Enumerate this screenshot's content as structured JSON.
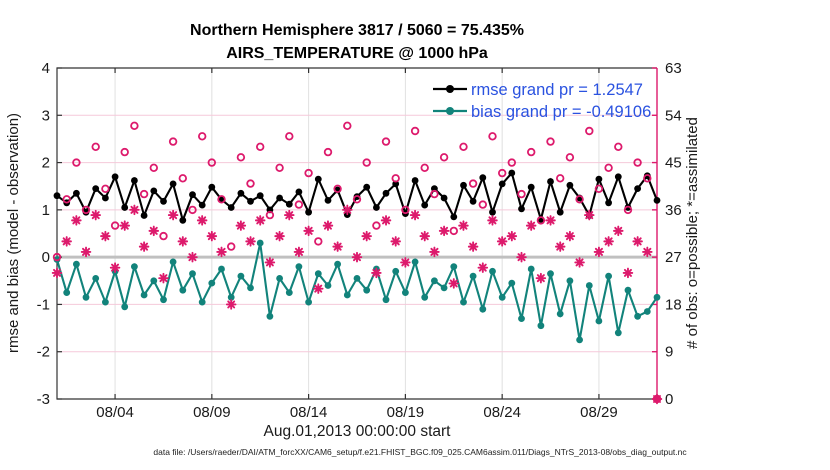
{
  "footer": {
    "text": "data file: /Users/raeder/DAI/ATM_forcXX/CAM6_setup/f.e21.FHIST_BGC.f09_025.CAM6assim.011/Diags_NTrS_2013-08/obs_diag_output.nc"
  },
  "legend": {
    "rmse_label": "rmse grand pr = 1.2547",
    "bias_label": "bias grand pr = -0.49106",
    "text_color": "#2a52e0"
  },
  "colors": {
    "rmse": "#000000",
    "bias": "#12837b",
    "obs": "#dd1a6c",
    "spine": "#333333",
    "grid_vertical": "#e0e0e0",
    "grid_horizontal_pink": "#f5c9da",
    "zero_line": "#c0c0c0"
  },
  "chart_data": {
    "type": "line",
    "title": "Northern Hemisphere 3817 / 5060 = 75.435%",
    "subtitle": "AIRS_TEMPERATURE @ 1000 hPa",
    "xlabel": "Aug.01,2013 00:00:00 start",
    "ylabel_left": "rmse and bias (model - observation)",
    "ylabel_right": "# of obs: o=possible; *=assimilated",
    "ylim_left": [
      -3,
      4
    ],
    "ylim_right": [
      0,
      63
    ],
    "xlim_days": [
      0,
      31
    ],
    "grid": "vertical gray at x ticks; horizontal pink at right-axis ticks; thick gray zero line",
    "legend_position": "upper right, no box",
    "x_ticks": [
      {
        "day": 3,
        "label": "08/04"
      },
      {
        "day": 8,
        "label": "08/09"
      },
      {
        "day": 13,
        "label": "08/14"
      },
      {
        "day": 18,
        "label": "08/19"
      },
      {
        "day": 23,
        "label": "08/24"
      },
      {
        "day": 28,
        "label": "08/29"
      }
    ],
    "y_ticks_left": [
      4,
      3,
      2,
      1,
      0,
      -1,
      -2,
      -3
    ],
    "y_ticks_right": [
      0,
      9,
      18,
      27,
      36,
      45,
      54,
      63
    ],
    "x_start_day": 0,
    "x_step_days": 0.5,
    "zero_line": 0,
    "series": [
      {
        "name": "rmse grand pr = 1.2547",
        "axis": "left",
        "marker": "filled-circle",
        "color": "#000000",
        "values": [
          1.3,
          1.15,
          1.35,
          0.95,
          1.45,
          1.25,
          1.7,
          1.05,
          1.62,
          0.88,
          1.4,
          1.18,
          1.55,
          0.78,
          1.32,
          1.1,
          1.48,
          1.22,
          1.05,
          1.35,
          1.18,
          1.3,
          1.0,
          1.25,
          1.12,
          1.38,
          0.95,
          1.65,
          1.2,
          1.42,
          0.9,
          1.28,
          1.48,
          1.05,
          1.35,
          1.55,
          0.92,
          1.62,
          1.1,
          1.45,
          1.25,
          0.85,
          1.52,
          1.18,
          1.68,
          0.95,
          1.55,
          1.78,
          1.02,
          1.48,
          0.8,
          1.6,
          0.95,
          1.52,
          1.25,
          0.88,
          1.65,
          1.15,
          1.7,
          1.05,
          1.45,
          1.72,
          1.2
        ]
      },
      {
        "name": "bias grand pr = -0.49106",
        "axis": "left",
        "marker": "filled-circle",
        "color": "#12837b",
        "values": [
          -0.05,
          -0.75,
          -0.15,
          -0.85,
          -0.45,
          -0.95,
          -0.3,
          -1.05,
          -0.2,
          -0.8,
          -0.5,
          -0.9,
          -0.1,
          -0.7,
          -0.35,
          -0.95,
          -0.55,
          -0.25,
          -0.85,
          -0.4,
          -0.65,
          0.3,
          -1.25,
          -0.45,
          -0.75,
          -0.2,
          -0.95,
          -0.35,
          -0.6,
          -0.15,
          -0.8,
          -0.45,
          -0.7,
          -0.25,
          -0.9,
          -0.3,
          -0.75,
          -0.1,
          -0.85,
          -0.5,
          -0.65,
          -0.2,
          -0.95,
          -0.4,
          -1.1,
          -0.3,
          -0.85,
          -0.55,
          -1.3,
          -0.25,
          -1.45,
          -0.35,
          -1.2,
          -0.5,
          -1.75,
          -0.6,
          -1.35,
          -0.4,
          -1.6,
          -0.7,
          -1.25,
          -1.15,
          -0.85
        ]
      },
      {
        "name": "possible observations",
        "axis": "right",
        "marker": "open-circle",
        "color": "#dd1a6c",
        "values": [
          27,
          38,
          45,
          36,
          48,
          40,
          33,
          47,
          52,
          39,
          44,
          31,
          49,
          42,
          36,
          50,
          45,
          38,
          29,
          46,
          41,
          48,
          35,
          44,
          50,
          37,
          43,
          30,
          47,
          40,
          52,
          38,
          45,
          33,
          49,
          42,
          36,
          51,
          44,
          39,
          46,
          32,
          48,
          41,
          37,
          50,
          43,
          45,
          39,
          47,
          34,
          49,
          42,
          46,
          38,
          51,
          40,
          44,
          48,
          36,
          45,
          42,
          0
        ]
      },
      {
        "name": "assimilated observations",
        "axis": "right",
        "marker": "asterisk",
        "color": "#dd1a6c",
        "values": [
          24,
          30,
          34,
          28,
          35,
          31,
          25,
          33,
          36,
          29,
          32,
          23,
          35,
          30,
          27,
          34,
          31,
          28,
          18,
          33,
          30,
          34,
          26,
          31,
          35,
          28,
          32,
          21,
          33,
          29,
          36,
          27,
          31,
          24,
          34,
          30,
          26,
          35,
          31,
          28,
          32,
          22,
          33,
          29,
          25,
          34,
          30,
          31,
          27,
          33,
          23,
          34,
          29,
          31,
          26,
          35,
          28,
          30,
          32,
          24,
          30,
          28,
          0
        ]
      }
    ]
  }
}
